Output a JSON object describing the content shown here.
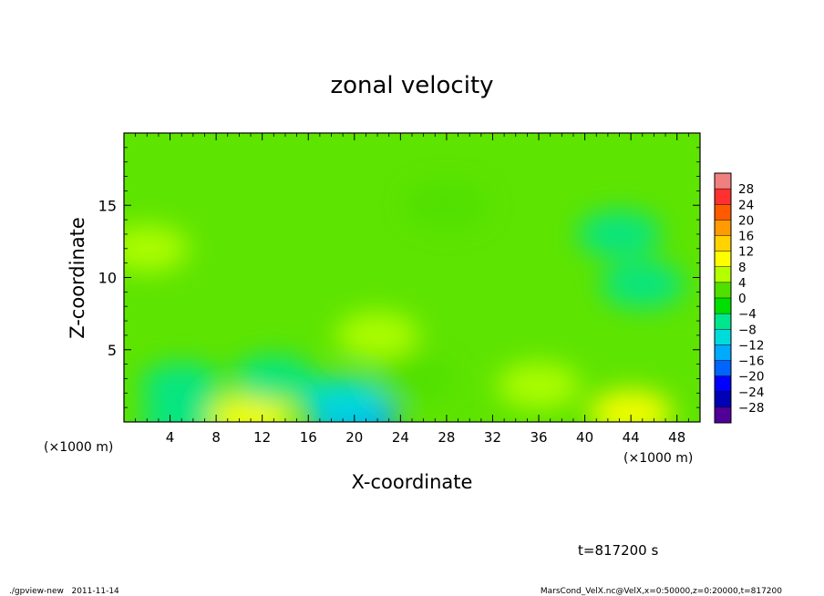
{
  "chart_data": {
    "type": "heatmap",
    "title": "zonal velocity",
    "xlabel": "X-coordinate",
    "ylabel": "Z-coordinate",
    "x_unit_left": "(×1000 m)",
    "x_unit_right": "(×1000 m)",
    "xlim": [
      0,
      50
    ],
    "ylim": [
      0,
      20
    ],
    "xticks": [
      4,
      8,
      12,
      16,
      20,
      24,
      28,
      32,
      36,
      40,
      44,
      48
    ],
    "xtick_labels": [
      "4",
      "8",
      "12",
      "16",
      "20",
      "24",
      "28",
      "32",
      "36",
      "40",
      "44",
      "48"
    ],
    "yticks": [
      5,
      10,
      15
    ],
    "ytick_labels": [
      "5",
      "10",
      "15"
    ],
    "colorbar": {
      "levels": [
        28,
        24,
        20,
        16,
        12,
        8,
        4,
        0,
        -4,
        -8,
        -12,
        -16,
        -20,
        -24,
        -28
      ],
      "labels": [
        "28",
        "24",
        "20",
        "16",
        "12",
        "8",
        "4",
        "0",
        "−4",
        "−8",
        "−12",
        "−16",
        "−20",
        "−24",
        "−28"
      ],
      "colors": [
        "#f08080",
        "#ff3030",
        "#ff5a00",
        "#ff9a00",
        "#ffd200",
        "#ffff00",
        "#b4ff00",
        "#50e000",
        "#00e000",
        "#00e68c",
        "#00dcdc",
        "#00aaff",
        "#0064ff",
        "#0000ff",
        "#0000b4",
        "#500096"
      ]
    },
    "field_features": [
      {
        "x": 5,
        "z": 0.0,
        "value": -8
      },
      {
        "x": 11,
        "z": 0.3,
        "value": 8
      },
      {
        "x": 20,
        "z": 0.2,
        "value": -16
      },
      {
        "x": 19,
        "z": 1.5,
        "value": -10
      },
      {
        "x": 22,
        "z": 6.0,
        "value": 6
      },
      {
        "x": 25,
        "z": 3.0,
        "value": 3
      },
      {
        "x": 13,
        "z": 3.0,
        "value": -5
      },
      {
        "x": 44,
        "z": 0.6,
        "value": 8
      },
      {
        "x": 45,
        "z": 9.5,
        "value": -8
      },
      {
        "x": 43,
        "z": 13.0,
        "value": -5
      },
      {
        "x": 2,
        "z": 12.0,
        "value": 4
      },
      {
        "x": 28,
        "z": 15.0,
        "value": 3
      },
      {
        "x": 36,
        "z": 2.5,
        "value": 4
      },
      {
        "x": 5,
        "z": 2.5,
        "value": -6
      }
    ],
    "background_value": 1,
    "time_label": "t=817200 s",
    "footer_left": "./gpview-new   2011-11-14",
    "footer_right": "MarsCond_VelX.nc@VelX,x=0:50000,z=0:20000,t=817200"
  }
}
